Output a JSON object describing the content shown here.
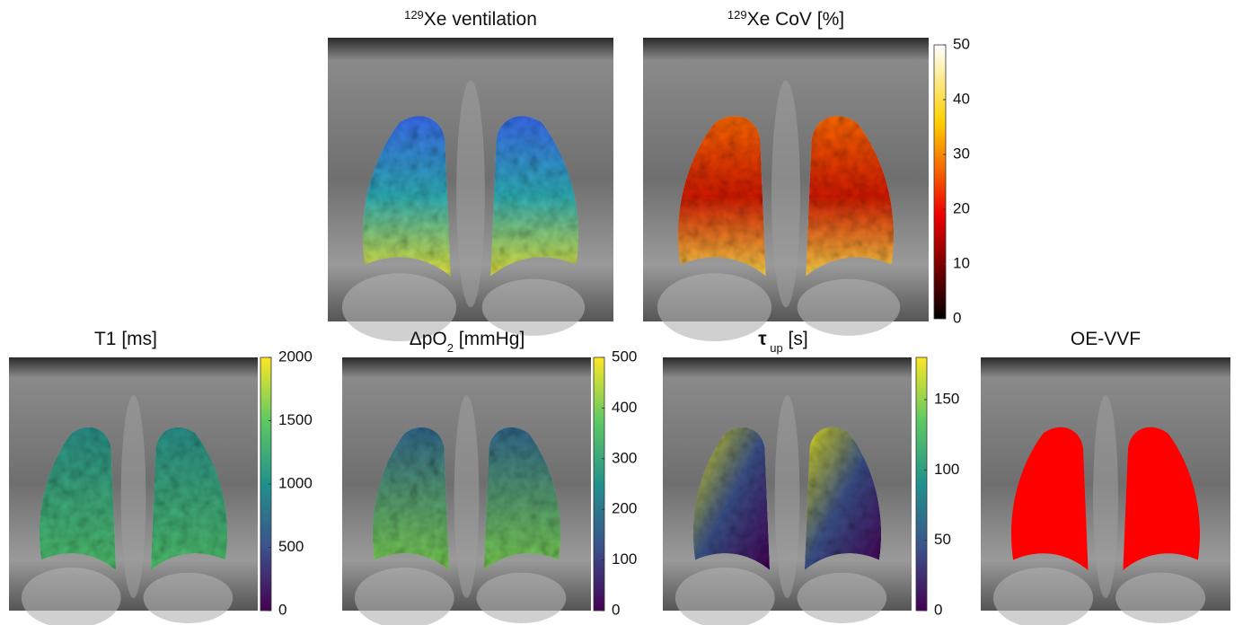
{
  "panels": [
    {
      "title": [
        {
          "text": "129",
          "format": "sup"
        },
        {
          "text": "Xe ventilation",
          "format": "normal"
        }
      ]
    },
    {
      "title": [
        {
          "text": "129",
          "format": "sup"
        },
        {
          "text": "Xe CoV [%]",
          "format": "normal"
        }
      ],
      "colorbar": {
        "colormap": "hot",
        "lim": [
          0,
          50
        ],
        "ticks": [
          0,
          10,
          20,
          30,
          40,
          50
        ]
      }
    },
    {
      "title": [
        {
          "text": "T1 [ms]",
          "format": "normal"
        }
      ],
      "colorbar": {
        "colormap": "viridis",
        "lim": [
          0,
          2000
        ],
        "ticks": [
          0,
          500,
          1000,
          1500,
          2000
        ]
      }
    },
    {
      "title": [
        {
          "text": "ΔpO",
          "format": "normal"
        },
        {
          "text": "2",
          "format": "sub"
        },
        {
          "text": " [mmHg]",
          "format": "normal"
        }
      ],
      "colorbar": {
        "colormap": "viridis",
        "lim": [
          0,
          500
        ],
        "ticks": [
          0,
          100,
          200,
          300,
          400,
          500
        ]
      }
    },
    {
      "title": [
        {
          "text": "τ",
          "format": "bold"
        },
        {
          "text": " up",
          "format": "sub"
        },
        {
          "text": " [s]",
          "format": "normal"
        }
      ],
      "colorbar": {
        "colormap": "viridis",
        "lim": [
          0,
          180
        ],
        "ticks": [
          0,
          50,
          100,
          150
        ]
      }
    },
    {
      "title": [
        {
          "text": "OE-VVF",
          "format": "normal"
        }
      ]
    }
  ]
}
